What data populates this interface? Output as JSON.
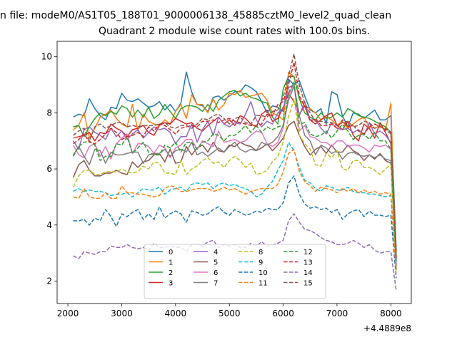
{
  "figure": {
    "suptitle": "n file: modeM0/AS1T05_188T01_9000006138_45885cztM0_level2_quad_clean",
    "title": "Quadrant 2 module wise count rates with 100.0s bins.",
    "offset_text": "+4.4889e8"
  },
  "chart_data": {
    "type": "line",
    "title": "Quadrant 2 module wise count rates with 100.0s bins.",
    "xlabel": "",
    "ylabel": "",
    "xlim": [
      1800,
      8380
    ],
    "ylim": [
      1.2,
      10.55
    ],
    "xticks": [
      2000,
      3000,
      4000,
      5000,
      6000,
      7000,
      8000
    ],
    "yticks": [
      2,
      4,
      6,
      8,
      10
    ],
    "x_offset": "+4.4889e8",
    "grid": false,
    "legend": {
      "placement": "lower center",
      "ncol": 4
    },
    "x": [
      2100,
      2200,
      2300,
      2400,
      2500,
      2600,
      2700,
      2800,
      2900,
      3000,
      3100,
      3200,
      3300,
      3400,
      3500,
      3600,
      3700,
      3800,
      3900,
      4000,
      4100,
      4200,
      4300,
      4400,
      4500,
      4600,
      4700,
      4800,
      4900,
      5000,
      5100,
      5200,
      5300,
      5400,
      5500,
      5600,
      5700,
      5800,
      5900,
      6000,
      6100,
      6200,
      6300,
      6400,
      6500,
      6600,
      6700,
      6800,
      6900,
      7000,
      7100,
      7200,
      7300,
      7400,
      7500,
      7600,
      7700,
      7800,
      7900,
      8000,
      8100
    ],
    "series": [
      {
        "name": "0",
        "color": "#1f77b4",
        "dash": "solid",
        "values": [
          7.85,
          7.95,
          7.9,
          8.5,
          8.15,
          7.9,
          7.75,
          8.2,
          8.15,
          8.7,
          8.45,
          8.4,
          8.5,
          8.35,
          8.2,
          8.25,
          8.4,
          8.1,
          8.3,
          8.05,
          8.35,
          9.45,
          8.75,
          8.3,
          8.25,
          8.05,
          8.55,
          8.6,
          8.45,
          8.6,
          8.75,
          8.75,
          9.0,
          8.9,
          8.75,
          8.4,
          8.0,
          8.25,
          8.2,
          8.05,
          9.2,
          9.0,
          9.15,
          8.6,
          8.1,
          8.0,
          8.15,
          7.6,
          8.75,
          8.65,
          7.9,
          7.5,
          8.0,
          7.95,
          7.8,
          7.95,
          8.1,
          7.75,
          7.75,
          7.9,
          3.1
        ]
      },
      {
        "name": "1",
        "color": "#ff7f0e",
        "dash": "solid",
        "values": [
          7.4,
          7.55,
          8.0,
          7.1,
          7.45,
          7.85,
          7.95,
          8.1,
          7.8,
          7.6,
          7.5,
          8.3,
          7.35,
          7.95,
          7.7,
          7.6,
          7.55,
          7.75,
          7.6,
          8.05,
          8.3,
          7.8,
          8.65,
          8.3,
          8.3,
          8.0,
          8.5,
          8.1,
          8.3,
          8.7,
          8.65,
          8.8,
          8.55,
          8.6,
          8.65,
          8.7,
          8.45,
          8.0,
          7.9,
          7.75,
          9.45,
          9.3,
          8.5,
          8.25,
          8.15,
          8.0,
          7.75,
          7.85,
          7.75,
          7.55,
          7.7,
          7.45,
          7.6,
          7.75,
          7.85,
          7.5,
          7.45,
          7.55,
          7.35,
          8.35,
          2.4
        ]
      },
      {
        "name": "2",
        "color": "#2ca02c",
        "dash": "solid",
        "values": [
          7.5,
          7.55,
          7.15,
          7.5,
          7.8,
          8.0,
          7.9,
          8.05,
          7.95,
          8.25,
          8.15,
          7.85,
          8.1,
          7.85,
          8.2,
          7.8,
          7.95,
          8.3,
          8.05,
          7.8,
          8.15,
          8.25,
          8.25,
          8.2,
          8.05,
          8.3,
          8.05,
          8.45,
          8.6,
          8.75,
          8.8,
          8.6,
          8.7,
          8.55,
          8.5,
          8.4,
          8.35,
          7.85,
          7.6,
          8.85,
          9.3,
          9.3,
          8.5,
          8.0,
          7.85,
          7.75,
          8.0,
          7.8,
          7.85,
          8.0,
          7.85,
          8.15,
          8.05,
          7.9,
          7.85,
          7.8,
          7.7,
          7.6,
          7.5,
          7.3,
          2.9
        ]
      },
      {
        "name": "3",
        "color": "#d62728",
        "dash": "solid",
        "values": [
          7.1,
          7.15,
          7.2,
          7.3,
          7.0,
          7.3,
          7.25,
          7.6,
          7.45,
          7.35,
          7.15,
          7.4,
          7.45,
          7.55,
          7.3,
          7.2,
          7.55,
          7.65,
          7.6,
          7.8,
          7.7,
          7.6,
          7.65,
          7.45,
          7.35,
          7.55,
          7.7,
          7.85,
          7.6,
          7.75,
          7.55,
          7.9,
          7.8,
          7.6,
          7.5,
          7.95,
          8.1,
          7.7,
          7.8,
          8.2,
          8.7,
          8.4,
          7.95,
          8.25,
          7.75,
          7.6,
          7.75,
          7.9,
          8.0,
          7.55,
          7.4,
          7.7,
          7.2,
          7.0,
          7.6,
          7.45,
          7.1,
          7.65,
          7.3,
          6.9,
          2.8
        ]
      },
      {
        "name": "4",
        "color": "#9467bd",
        "dash": "solid",
        "values": [
          7.0,
          6.7,
          7.4,
          7.5,
          7.3,
          7.2,
          7.05,
          7.45,
          7.15,
          7.35,
          7.05,
          7.25,
          7.4,
          7.1,
          7.3,
          7.5,
          7.4,
          7.45,
          7.3,
          6.9,
          7.15,
          7.15,
          7.6,
          6.95,
          7.4,
          7.7,
          7.2,
          7.85,
          7.6,
          7.5,
          7.65,
          7.6,
          7.95,
          8.4,
          7.75,
          7.5,
          7.7,
          7.6,
          8.0,
          8.15,
          8.9,
          9.0,
          7.9,
          8.4,
          7.75,
          7.75,
          7.45,
          7.25,
          7.65,
          7.45,
          7.4,
          7.45,
          7.3,
          7.4,
          7.2,
          7.65,
          7.25,
          7.35,
          7.2,
          6.95,
          2.7
        ]
      },
      {
        "name": "5",
        "color": "#8c564b",
        "dash": "solid",
        "values": [
          5.7,
          6.15,
          6.3,
          5.95,
          5.75,
          5.75,
          5.85,
          5.85,
          5.95,
          5.85,
          5.8,
          6.25,
          6.05,
          6.25,
          6.3,
          6.5,
          6.55,
          6.25,
          6.7,
          6.2,
          6.25,
          6.8,
          6.5,
          6.75,
          6.85,
          6.6,
          6.95,
          6.65,
          6.6,
          6.85,
          6.8,
          6.95,
          6.85,
          6.8,
          6.65,
          6.75,
          6.9,
          6.65,
          6.85,
          7.1,
          7.55,
          7.7,
          7.2,
          6.8,
          6.5,
          6.7,
          6.8,
          6.55,
          6.85,
          6.6,
          6.6,
          6.85,
          6.65,
          6.55,
          6.3,
          6.5,
          6.35,
          6.55,
          6.3,
          6.2,
          2.5
        ]
      },
      {
        "name": "6",
        "color": "#e377c2",
        "dash": "solid",
        "values": [
          6.85,
          6.5,
          6.4,
          6.8,
          6.9,
          6.45,
          6.8,
          6.35,
          6.9,
          7.1,
          7.25,
          6.55,
          6.9,
          6.9,
          6.8,
          6.55,
          6.85,
          6.75,
          6.4,
          6.75,
          6.85,
          7.05,
          7.05,
          6.7,
          7.0,
          6.9,
          6.8,
          7.35,
          6.95,
          7.0,
          7.05,
          6.95,
          7.0,
          7.2,
          7.35,
          7.3,
          6.9,
          6.8,
          6.95,
          7.45,
          8.6,
          9.05,
          7.35,
          7.55,
          7.15,
          7.1,
          6.95,
          6.95,
          6.8,
          7.0,
          7.0,
          6.8,
          6.85,
          6.85,
          6.75,
          6.6,
          6.85,
          6.8,
          6.85,
          6.7,
          2.6
        ]
      },
      {
        "name": "7",
        "color": "#7f7f7f",
        "dash": "solid",
        "values": [
          6.5,
          6.8,
          6.45,
          6.15,
          6.7,
          6.65,
          6.2,
          6.6,
          6.5,
          6.5,
          6.55,
          6.6,
          6.6,
          6.2,
          6.5,
          6.55,
          6.55,
          6.7,
          6.45,
          6.65,
          6.7,
          6.6,
          6.95,
          6.5,
          6.6,
          6.45,
          6.6,
          6.75,
          6.6,
          6.8,
          6.95,
          6.7,
          6.6,
          6.7,
          6.65,
          6.95,
          6.85,
          6.95,
          7.15,
          7.55,
          8.45,
          8.95,
          7.9,
          7.2,
          7.0,
          6.5,
          6.85,
          6.75,
          6.55,
          6.65,
          6.35,
          6.55,
          6.6,
          6.5,
          6.45,
          6.5,
          6.4,
          6.5,
          6.35,
          6.3,
          2.6
        ]
      },
      {
        "name": "8",
        "color": "#bcbd22",
        "dash": "dashed",
        "values": [
          5.35,
          5.75,
          5.95,
          5.95,
          5.8,
          5.8,
          5.9,
          5.9,
          5.9,
          6.0,
          5.9,
          5.85,
          5.9,
          6.1,
          6.0,
          6.25,
          6.2,
          5.85,
          5.85,
          5.8,
          6.3,
          5.8,
          6.0,
          6.1,
          6.3,
          6.4,
          6.2,
          6.25,
          6.05,
          6.3,
          6.45,
          6.3,
          6.05,
          6.2,
          5.8,
          5.85,
          5.95,
          6.25,
          6.45,
          6.95,
          7.85,
          8.5,
          7.2,
          6.9,
          6.7,
          6.15,
          6.1,
          6.55,
          6.4,
          6.65,
          6.0,
          5.95,
          6.3,
          6.3,
          6.05,
          6.05,
          5.95,
          5.8,
          6.0,
          6.15,
          2.4
        ]
      },
      {
        "name": "9",
        "color": "#17becf",
        "dash": "dashed",
        "values": [
          5.2,
          5.3,
          5.2,
          5.25,
          5.2,
          5.2,
          5.15,
          5.05,
          5.1,
          5.1,
          5.15,
          5.0,
          5.15,
          5.3,
          5.25,
          5.25,
          5.35,
          5.1,
          5.25,
          5.3,
          5.35,
          5.2,
          5.45,
          5.5,
          5.45,
          5.5,
          5.3,
          5.45,
          5.5,
          5.4,
          5.45,
          5.35,
          5.3,
          5.2,
          5.0,
          5.1,
          5.35,
          5.55,
          5.95,
          6.3,
          6.95,
          6.65,
          6.05,
          5.6,
          5.5,
          5.3,
          5.2,
          5.4,
          5.35,
          5.25,
          5.25,
          5.35,
          5.2,
          5.15,
          5.15,
          5.1,
          5.1,
          5.05,
          5.0,
          5.05,
          2.3
        ]
      },
      {
        "name": "10",
        "color": "#1f77b4",
        "dash": "dashed",
        "values": [
          4.15,
          4.15,
          4.2,
          4.0,
          4.25,
          4.15,
          4.55,
          4.3,
          3.95,
          4.4,
          4.3,
          4.45,
          4.55,
          4.2,
          4.4,
          4.2,
          4.65,
          4.25,
          4.4,
          4.5,
          4.4,
          4.1,
          4.5,
          4.45,
          4.35,
          4.4,
          4.55,
          4.65,
          4.45,
          4.35,
          4.55,
          4.45,
          4.35,
          4.4,
          4.5,
          4.45,
          4.6,
          4.55,
          4.55,
          4.8,
          5.5,
          5.75,
          5.1,
          4.75,
          4.6,
          4.65,
          4.55,
          4.6,
          4.45,
          4.55,
          4.2,
          4.4,
          4.5,
          4.55,
          4.3,
          4.5,
          4.35,
          4.35,
          4.3,
          4.35,
          2.1
        ]
      },
      {
        "name": "11",
        "color": "#ff7f0e",
        "dash": "dashed",
        "values": [
          5.0,
          4.95,
          5.3,
          5.0,
          4.95,
          4.95,
          5.15,
          4.95,
          4.95,
          5.4,
          5.15,
          5.15,
          5.1,
          5.1,
          5.05,
          5.0,
          5.05,
          5.3,
          5.4,
          5.35,
          5.2,
          5.2,
          5.25,
          5.3,
          5.3,
          5.3,
          5.2,
          5.25,
          5.35,
          5.25,
          5.3,
          5.2,
          5.1,
          5.2,
          5.25,
          5.3,
          5.3,
          5.3,
          5.45,
          5.9,
          6.55,
          6.7,
          5.9,
          5.55,
          5.4,
          5.2,
          5.35,
          5.3,
          5.25,
          5.15,
          5.3,
          5.2,
          5.3,
          5.15,
          5.25,
          5.15,
          5.2,
          5.1,
          5.15,
          5.1,
          2.3
        ]
      },
      {
        "name": "12",
        "color": "#2ca02c",
        "dash": "dashed",
        "values": [
          6.45,
          6.8,
          6.95,
          7.0,
          6.85,
          6.3,
          6.45,
          6.45,
          6.9,
          6.85,
          7.15,
          6.55,
          6.75,
          6.95,
          6.6,
          6.5,
          6.5,
          6.85,
          6.75,
          6.95,
          6.6,
          6.95,
          6.95,
          6.7,
          6.95,
          7.0,
          7.25,
          7.2,
          7.0,
          7.2,
          7.2,
          7.35,
          7.55,
          7.3,
          7.55,
          7.3,
          7.5,
          7.4,
          7.5,
          7.55,
          8.7,
          9.1,
          7.6,
          7.65,
          7.25,
          7.15,
          7.2,
          7.35,
          7.1,
          7.35,
          7.6,
          7.35,
          7.05,
          7.2,
          7.25,
          7.05,
          7.3,
          7.0,
          7.0,
          6.7,
          2.7
        ]
      },
      {
        "name": "13",
        "color": "#d62728",
        "dash": "dashed",
        "values": [
          6.9,
          7.05,
          7.25,
          6.95,
          6.9,
          7.05,
          7.25,
          7.45,
          7.3,
          7.05,
          7.15,
          7.2,
          7.3,
          7.15,
          7.5,
          7.35,
          7.6,
          7.55,
          7.4,
          7.25,
          7.45,
          7.5,
          7.55,
          7.5,
          7.7,
          7.7,
          7.75,
          7.65,
          7.75,
          7.8,
          7.7,
          7.65,
          7.6,
          7.55,
          7.55,
          7.6,
          7.95,
          7.9,
          8.3,
          8.4,
          9.0,
          9.8,
          8.6,
          8.25,
          7.7,
          7.8,
          7.55,
          7.55,
          7.6,
          7.45,
          7.75,
          7.5,
          7.55,
          7.35,
          7.25,
          7.5,
          7.6,
          7.5,
          7.45,
          7.3,
          2.8
        ]
      },
      {
        "name": "14",
        "color": "#9467bd",
        "dash": "dashed",
        "values": [
          2.9,
          2.8,
          3.05,
          3.0,
          2.95,
          3.05,
          3.05,
          3.25,
          3.2,
          3.2,
          3.3,
          3.2,
          3.15,
          3.2,
          3.1,
          3.35,
          3.2,
          3.2,
          3.25,
          3.2,
          3.2,
          3.05,
          3.3,
          3.3,
          3.25,
          3.4,
          3.45,
          3.2,
          3.3,
          3.25,
          3.3,
          3.2,
          3.2,
          3.35,
          3.25,
          3.4,
          3.25,
          3.3,
          3.35,
          3.45,
          4.15,
          4.4,
          4.1,
          3.85,
          3.8,
          3.7,
          3.55,
          3.45,
          3.4,
          3.3,
          3.3,
          3.35,
          3.45,
          3.35,
          3.2,
          3.3,
          3.1,
          3.0,
          3.05,
          3.05,
          1.65
        ]
      },
      {
        "name": "15",
        "color": "#8c564b",
        "dash": "dashed",
        "values": [
          7.2,
          7.35,
          7.45,
          7.0,
          7.5,
          7.6,
          7.45,
          7.55,
          7.65,
          7.65,
          7.5,
          7.55,
          7.5,
          7.55,
          7.55,
          7.55,
          7.6,
          7.65,
          7.5,
          7.45,
          7.55,
          7.55,
          7.45,
          7.6,
          7.8,
          7.75,
          7.9,
          7.95,
          7.8,
          7.6,
          7.8,
          7.85,
          7.65,
          7.6,
          7.9,
          7.9,
          7.85,
          8.05,
          8.1,
          8.55,
          9.3,
          10.1,
          9.0,
          8.35,
          8.0,
          7.7,
          7.7,
          7.65,
          7.65,
          7.55,
          7.65,
          7.7,
          7.5,
          7.55,
          7.7,
          7.65,
          7.45,
          7.5,
          7.4,
          7.25,
          3.0
        ]
      }
    ]
  }
}
